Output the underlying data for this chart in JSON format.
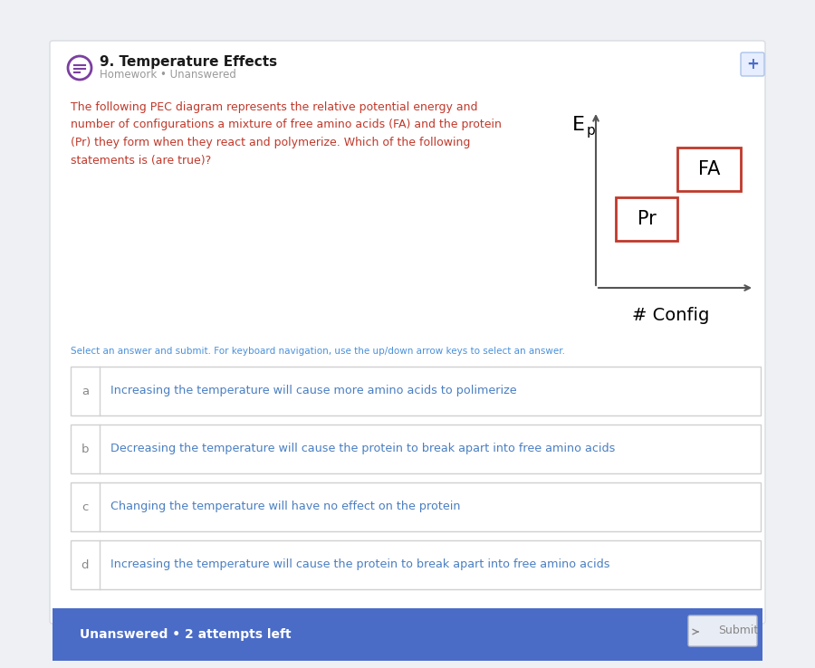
{
  "title": "9. Temperature Effects",
  "subtitle": "Homework • Unanswered",
  "question_color": "#c0392b",
  "question_text": "The following PEC diagram represents the relative potential energy and\nnumber of configurations a mixture of free amino acids (FA) and the protein\n(Pr) they form when they react and polymerize. Which of the following\nstatements is (are true)?",
  "ep_label": "E",
  "ep_subscript": "p",
  "config_label": "# Config",
  "fa_label": "FA",
  "pr_label": "Pr",
  "box_color": "#c0392b",
  "select_text": "Select an answer and submit. For keyboard navigation, use the up/down arrow keys to select an answer.",
  "select_text_color": "#4a90d9",
  "options": [
    {
      "letter": "a",
      "text": "Increasing the temperature will cause more amino acids to polimerize"
    },
    {
      "letter": "b",
      "text": "Decreasing the temperature will cause the protein to break apart into free amino acids"
    },
    {
      "letter": "c",
      "text": "Changing the temperature will have no effect on the protein"
    },
    {
      "letter": "d",
      "text": "Increasing the temperature will cause the protein to break apart into free amino acids"
    }
  ],
  "option_text_color": "#4a7fc1",
  "footer_bg": "#4a6cc7",
  "footer_text": "Unanswered • 2 attempts left",
  "submit_text": "Submit",
  "bg_color": "#eef0f4",
  "card_bg": "#ffffff",
  "border_color": "#d8dce0",
  "header_icon_color": "#7b3fa0",
  "title_color": "#1a1a1a",
  "subtitle_color": "#999999",
  "letter_color": "#888888",
  "option_border_color": "#d0d0d0",
  "plus_btn_color": "#4a6cc7"
}
